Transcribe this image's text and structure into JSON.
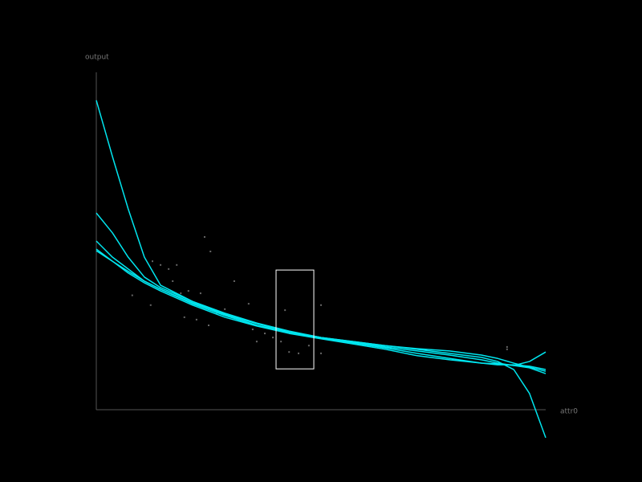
{
  "chart_data": {
    "type": "line",
    "xlabel": "attr0",
    "ylabel": "output",
    "xlim": [
      0,
      1
    ],
    "ylim": [
      0,
      1
    ],
    "x": [
      0,
      0.036,
      0.071,
      0.107,
      0.143,
      0.214,
      0.286,
      0.357,
      0.429,
      0.5,
      0.571,
      0.643,
      0.714,
      0.786,
      0.857,
      0.893,
      0.929,
      0.964,
      1
    ],
    "series": [
      {
        "color": "#00e5ee",
        "values": [
          0.917,
          0.75,
          0.595,
          0.452,
          0.369,
          0.321,
          0.281,
          0.25,
          0.231,
          0.214,
          0.202,
          0.19,
          0.179,
          0.167,
          0.155,
          0.143,
          0.119,
          0.048,
          -0.083
        ]
      },
      {
        "color": "#00e5ee",
        "values": [
          0.583,
          0.524,
          0.452,
          0.393,
          0.362,
          0.321,
          0.286,
          0.257,
          0.233,
          0.214,
          0.2,
          0.186,
          0.174,
          0.162,
          0.148,
          0.138,
          0.131,
          0.143,
          0.171
        ]
      },
      {
        "color": "#00e5ee",
        "values": [
          0.5,
          0.452,
          0.417,
          0.381,
          0.357,
          0.317,
          0.283,
          0.255,
          0.231,
          0.214,
          0.202,
          0.19,
          0.181,
          0.174,
          0.162,
          0.152,
          0.138,
          0.126,
          0.114
        ]
      },
      {
        "color": "#00e5ee",
        "values": [
          0.471,
          0.44,
          0.41,
          0.381,
          0.357,
          0.314,
          0.279,
          0.25,
          0.229,
          0.212,
          0.198,
          0.183,
          0.167,
          0.152,
          0.138,
          0.133,
          0.133,
          0.129,
          0.119
        ]
      },
      {
        "color": "#00e5ee",
        "values": [
          0.476,
          0.44,
          0.405,
          0.376,
          0.352,
          0.31,
          0.274,
          0.248,
          0.226,
          0.21,
          0.195,
          0.179,
          0.16,
          0.148,
          0.138,
          0.136,
          0.131,
          0.124,
          0.107
        ]
      }
    ],
    "scatter": {
      "color": "#666666",
      "x": [
        0.08,
        0.121,
        0.125,
        0.143,
        0.161,
        0.17,
        0.179,
        0.188,
        0.205,
        0.223,
        0.232,
        0.241,
        0.254,
        0.268,
        0.286,
        0.307,
        0.321,
        0.339,
        0.348,
        0.357,
        0.375,
        0.393,
        0.411,
        0.42,
        0.429,
        0.45,
        0.473,
        0.5,
        0.5,
        0.914,
        0.914,
        0.196,
        0.25
      ],
      "y": [
        0.339,
        0.31,
        0.44,
        0.429,
        0.417,
        0.381,
        0.429,
        0.345,
        0.352,
        0.267,
        0.345,
        0.512,
        0.469,
        0.286,
        0.298,
        0.381,
        0.267,
        0.314,
        0.238,
        0.202,
        0.226,
        0.214,
        0.202,
        0.295,
        0.171,
        0.167,
        0.19,
        0.31,
        0.167,
        0.186,
        0.179,
        0.274,
        0.25
      ]
    },
    "selection": {
      "color": "#ffffff",
      "xlim": [
        0.4,
        0.484
      ],
      "ylim": [
        0.121,
        0.414
      ]
    }
  }
}
